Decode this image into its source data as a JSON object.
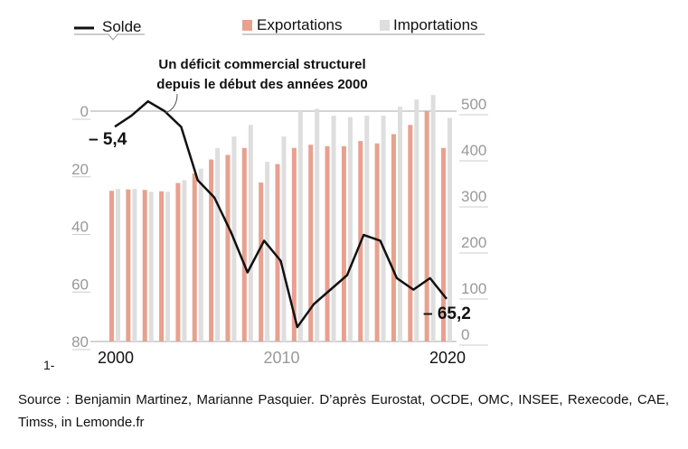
{
  "chart_data": {
    "type": "bar+line",
    "title": "Un déficit commercial structurel depuis le début des années 2000",
    "legend": [
      "Solde",
      "Exportations",
      "Importations"
    ],
    "legend_position": "top",
    "x": [
      2000,
      2001,
      2002,
      2003,
      2004,
      2005,
      2006,
      2007,
      2008,
      2009,
      2010,
      2011,
      2012,
      2013,
      2014,
      2015,
      2016,
      2017,
      2018,
      2019,
      2020
    ],
    "x_ticks": [
      "2000",
      "2010",
      "2020"
    ],
    "series": [
      {
        "name": "Exportations",
        "axis": "right",
        "values": [
          327,
          330,
          329,
          326,
          344,
          365,
          395,
          405,
          420,
          345,
          385,
          420,
          427,
          424,
          424,
          435,
          430,
          450,
          470,
          500,
          420
        ]
      },
      {
        "name": "Importations",
        "axis": "right",
        "values": [
          331,
          331,
          325,
          325,
          350,
          375,
          420,
          445,
          470,
          390,
          445,
          500,
          505,
          490,
          487,
          490,
          490,
          510,
          525,
          535,
          485
        ]
      },
      {
        "name": "Solde",
        "axis": "left",
        "values": [
          -5.4,
          -1.6,
          3.4,
          0,
          -5.5,
          -24,
          -30,
          -42,
          -56,
          -45,
          -52,
          -75,
          -67,
          -62,
          -57,
          -43,
          -45,
          -58,
          -62,
          -58,
          -65.2
        ]
      }
    ],
    "left_ticks": [
      "0",
      "20",
      "40",
      "60",
      "80"
    ],
    "right_ticks": [
      "0",
      "100",
      "200",
      "300",
      "400",
      "500"
    ],
    "left_range": [
      0,
      -80
    ],
    "right_range": [
      0,
      500
    ],
    "labels": {
      "start": "– 5,4",
      "end": "– 65,2"
    },
    "colors": {
      "exports": "#e8a08f",
      "imports": "#dedede",
      "solde": "#111111"
    }
  },
  "figure_number": "1-",
  "source": "Source : Benjamin Martinez, Marianne Pasquier. D’après Eurostat, OCDE, OMC, INSEE, Rexecode, CAE, Timss, in Lemonde.fr"
}
